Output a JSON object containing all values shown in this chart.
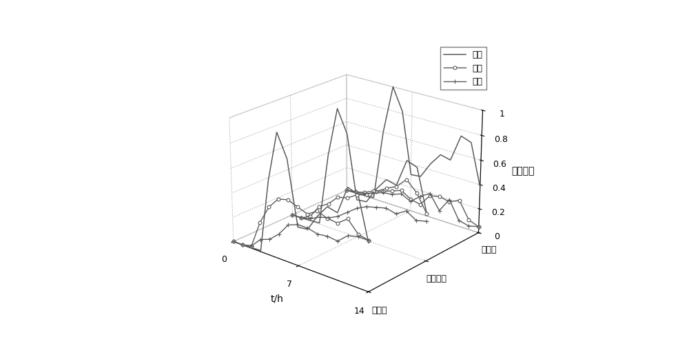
{
  "t_values": [
    0,
    1,
    2,
    3,
    4,
    5,
    6,
    7,
    8,
    9,
    10,
    11,
    12,
    13,
    14
  ],
  "xlabel": "t/h",
  "zlabel": "归一化値",
  "y_tick_labels": [
    "辐照度",
    "气象特征",
    "能见度"
  ],
  "legend_labels": [
    "阴天",
    "小雨",
    "大雨"
  ],
  "x_ticks": [
    0,
    7,
    14
  ],
  "z_ticks": [
    0,
    0.2,
    0.4,
    0.6,
    0.8,
    1.0
  ],
  "series_colors": [
    "#808080",
    "#808080",
    "#808080"
  ],
  "line_color": "#606060",
  "background_color": "#ffffff",
  "elev": 22,
  "azim": -50,
  "plane_data": {
    "yintian": {
      "0": [
        0.0,
        0.0,
        0.005,
        0.01,
        0.6,
        1.0,
        0.82,
        0.31,
        0.32,
        0.45,
        0.55,
        0.53,
        0.75,
        0.72,
        0.38
      ],
      "1": [
        0.0,
        0.0,
        0.005,
        0.01,
        0.6,
        1.0,
        0.82,
        0.31,
        0.32,
        0.45,
        0.55,
        0.53,
        0.75,
        0.72,
        0.38
      ],
      "2": [
        0.0,
        0.0,
        0.005,
        0.01,
        0.6,
        1.0,
        0.82,
        0.31,
        0.32,
        0.45,
        0.55,
        0.53,
        0.75,
        0.72,
        0.38
      ]
    },
    "xiaoyu": {
      "0": [
        0.0,
        0.0,
        0.02,
        0.24,
        0.39,
        0.48,
        0.5,
        0.47,
        0.44,
        0.49,
        0.46,
        0.45,
        0.51,
        0.42,
        0.4
      ],
      "1": [
        0.0,
        0.0,
        0.04,
        0.15,
        0.2,
        0.28,
        0.3,
        0.35,
        0.38,
        0.43,
        0.48,
        0.52,
        0.6,
        0.52,
        0.38
      ],
      "2": [
        0.0,
        0.01,
        0.03,
        0.07,
        0.09,
        0.12,
        0.15,
        0.1,
        0.08,
        0.18,
        0.2,
        0.18,
        0.22,
        0.08,
        0.05
      ]
    },
    "dayu": {
      "0": [
        0.0,
        0.0,
        0.02,
        0.1,
        0.13,
        0.2,
        0.3,
        0.33,
        0.33,
        0.31,
        0.32,
        0.31,
        0.38,
        0.4,
        0.4
      ],
      "1": [
        0.0,
        0.0,
        0.02,
        0.06,
        0.08,
        0.12,
        0.18,
        0.24,
        0.28,
        0.3,
        0.32,
        0.3,
        0.35,
        0.3,
        0.32
      ],
      "2": [
        0.0,
        0.01,
        0.02,
        0.05,
        0.08,
        0.09,
        0.12,
        0.08,
        0.15,
        0.2,
        0.08,
        0.2,
        0.05,
        0.03,
        0.05
      ]
    }
  }
}
